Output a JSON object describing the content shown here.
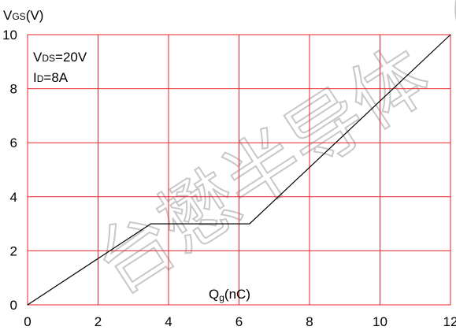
{
  "chart_data": {
    "type": "line",
    "title": "",
    "xlabel": {
      "main": "Q",
      "sub": "g",
      "rest": "(nC)"
    },
    "ylabel": {
      "main": "V",
      "sub": "GS",
      "rest": "(V)"
    },
    "xlim": [
      0,
      12
    ],
    "ylim": [
      0,
      10
    ],
    "x_ticks": [
      "0",
      "2",
      "4",
      "6",
      "8",
      "10",
      "12"
    ],
    "y_ticks": [
      "0",
      "2",
      "4",
      "6",
      "8",
      "10"
    ],
    "grid": true,
    "colors": {
      "grid": "#e8232a",
      "curve": "#000000",
      "text": "#000000",
      "watermark": "#c8c8c8"
    },
    "conditions": [
      {
        "main": "V",
        "sub": "DS",
        "rest": "=20V"
      },
      {
        "main": "I",
        "sub": "D",
        "rest": "=8A"
      }
    ],
    "series": [
      {
        "x": [
          0,
          3.5,
          6.3,
          12
        ],
        "y": [
          0,
          3.0,
          3.0,
          10
        ]
      }
    ],
    "watermark": "台懋半导体（"
  }
}
